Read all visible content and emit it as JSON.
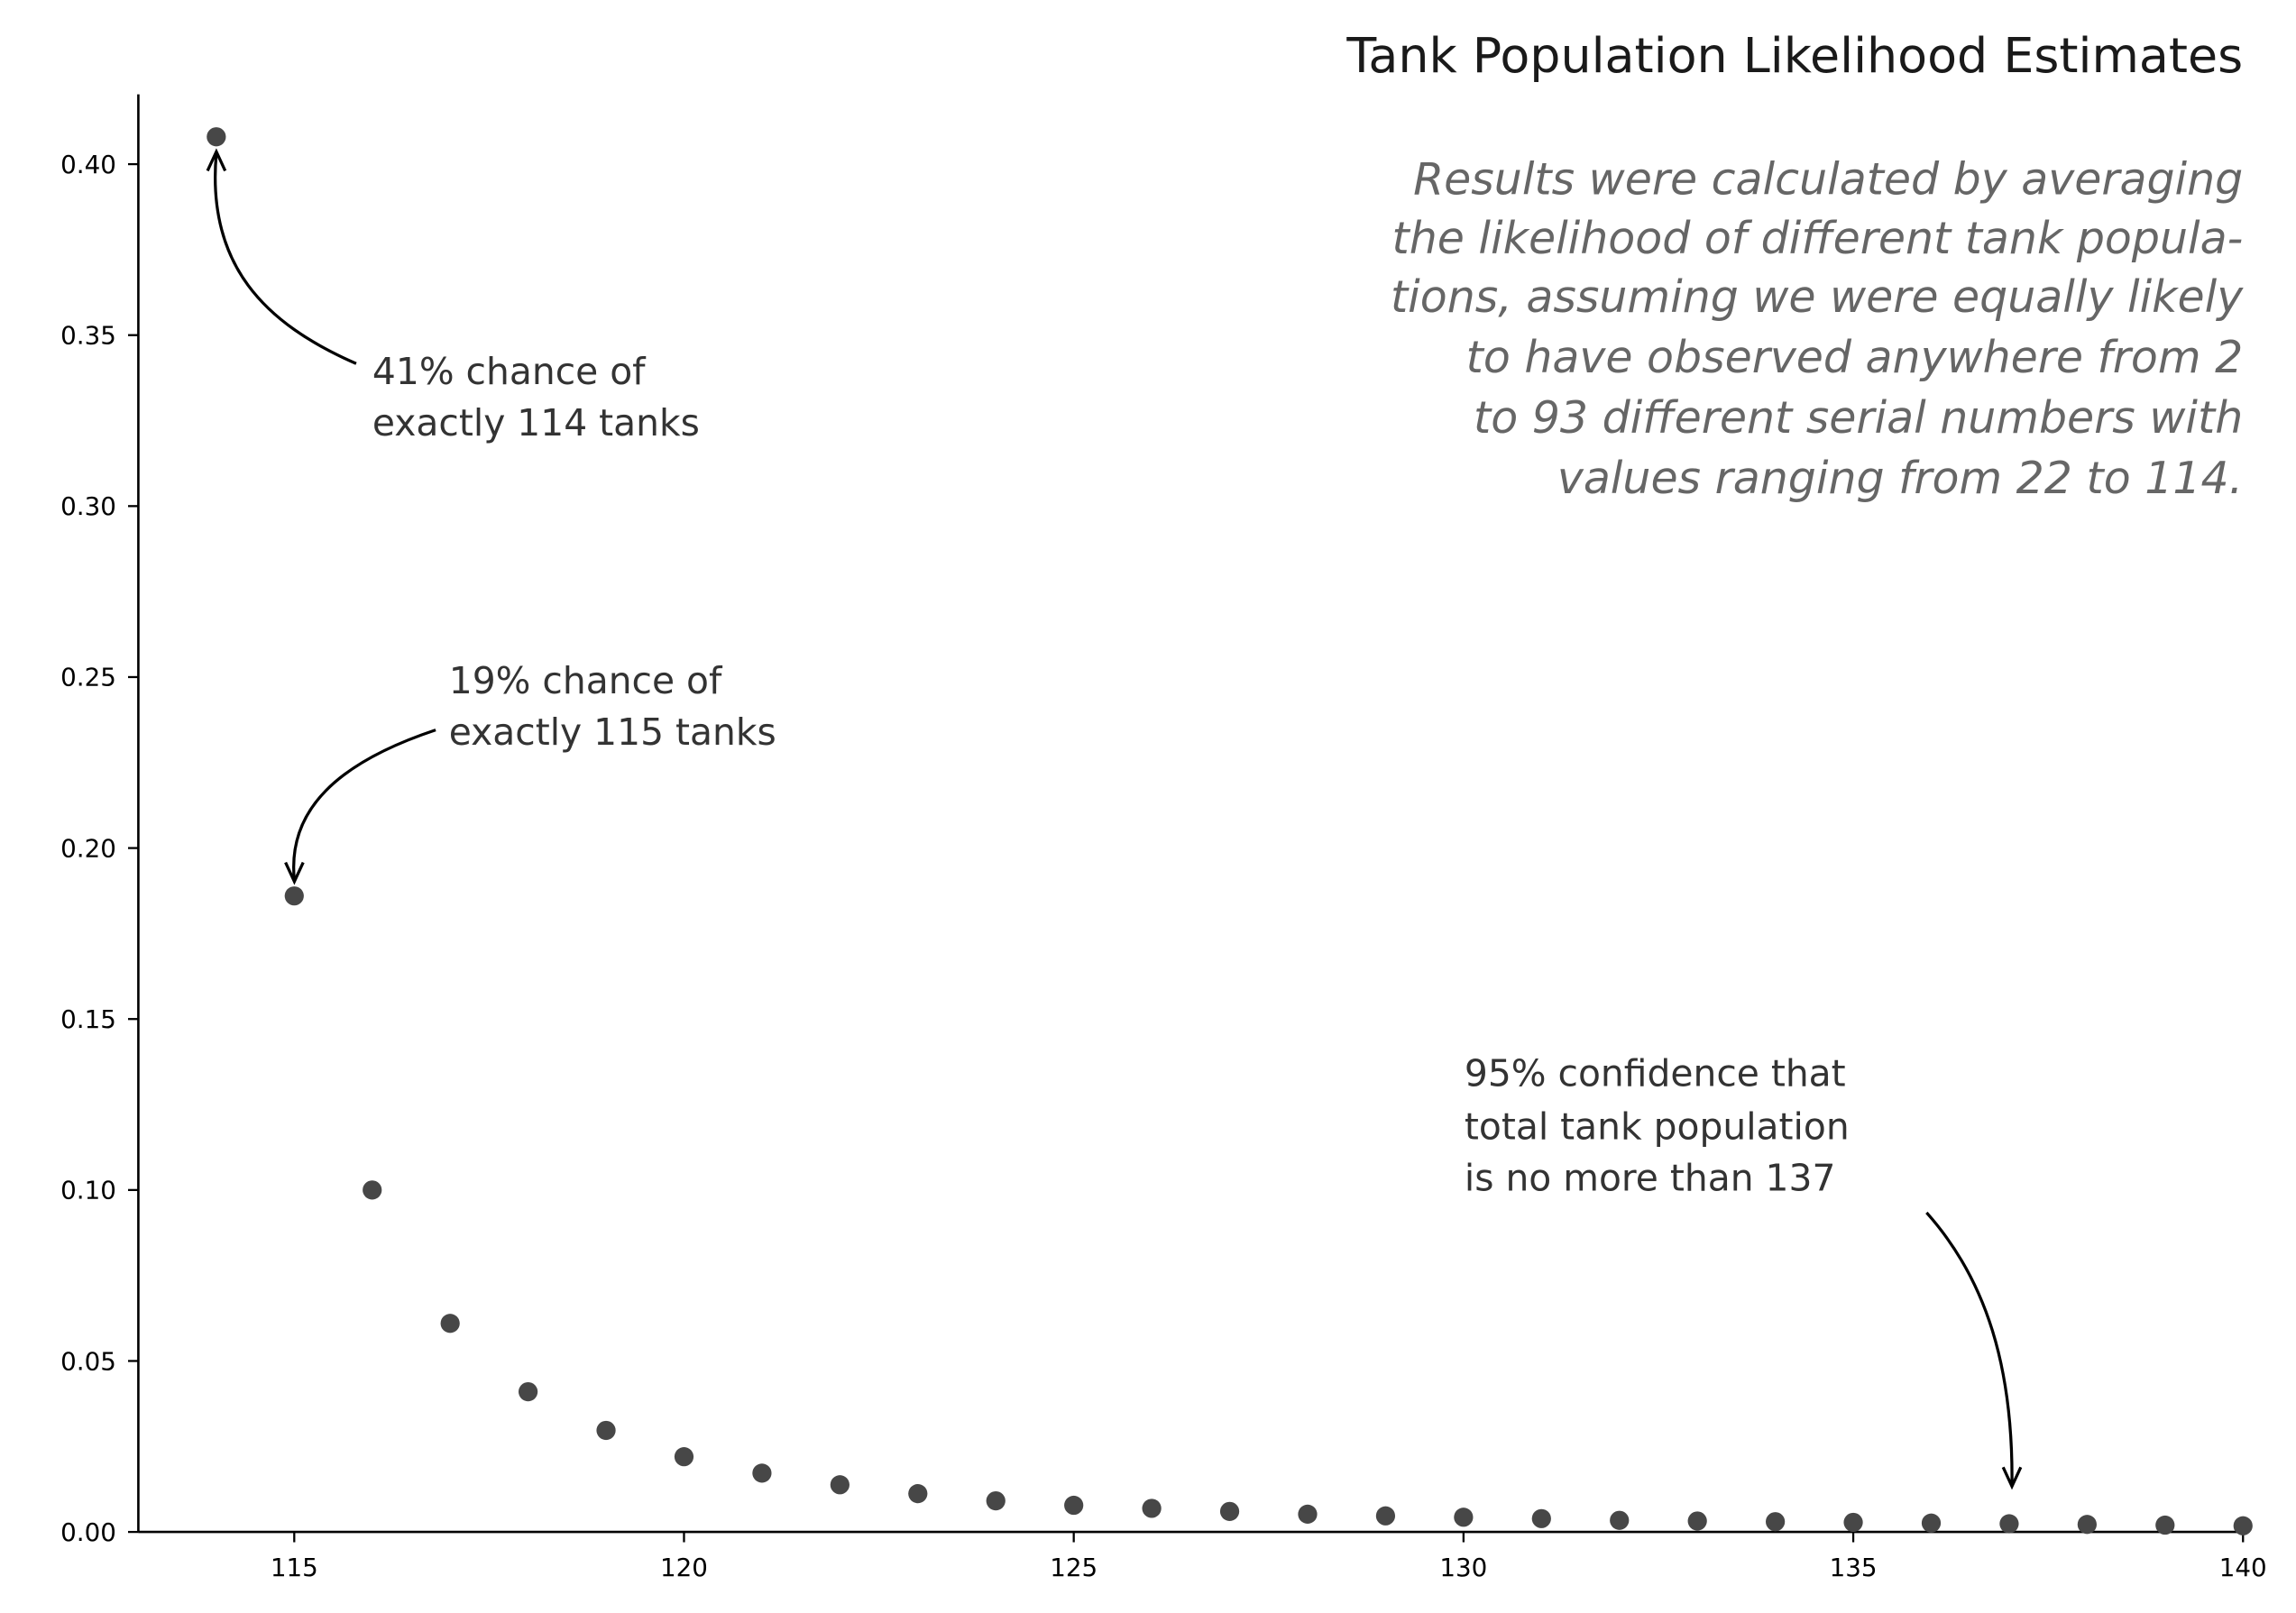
{
  "chart_data": {
    "type": "scatter",
    "title": "Tank Population Likelihood Estimates",
    "xlabel": "",
    "ylabel": "",
    "xlim": [
      113,
      140
    ],
    "ylim": [
      0,
      0.42
    ],
    "grid": false,
    "xticks": [
      "115",
      "120",
      "125",
      "130",
      "135",
      "140"
    ],
    "yticks": [
      "0.00",
      "0.05",
      "0.10",
      "0.15",
      "0.20",
      "0.25",
      "0.30",
      "0.35",
      "0.40"
    ],
    "x": [
      114,
      115,
      116,
      117,
      118,
      119,
      120,
      121,
      122,
      123,
      124,
      125,
      126,
      127,
      128,
      129,
      130,
      131,
      132,
      133,
      134,
      135,
      136,
      137,
      138,
      139,
      140
    ],
    "y": [
      0.408,
      0.186,
      0.1,
      0.061,
      0.041,
      0.0297,
      0.022,
      0.0172,
      0.0138,
      0.0112,
      0.0091,
      0.0078,
      0.0069,
      0.006,
      0.0052,
      0.0047,
      0.0043,
      0.0039,
      0.0034,
      0.0032,
      0.003,
      0.0028,
      0.0026,
      0.0024,
      0.0022,
      0.002,
      0.0018
    ],
    "point_color": "#474747",
    "annotations": {
      "a114": [
        "41% chance of",
        "exactly 114 tanks"
      ],
      "a115": [
        "19% chance of",
        "exactly 115 tanks"
      ],
      "a137": [
        "95% confidence that",
        "total tank population",
        "is no more than 137"
      ]
    },
    "note": [
      "Results were calculated by averaging",
      "the likelihood of different tank popula-",
      "tions, assuming we were equally likely",
      "to have observed anywhere from 2 ",
      "to 93 different serial numbers with ",
      "values ranging from 22 to 114."
    ]
  }
}
